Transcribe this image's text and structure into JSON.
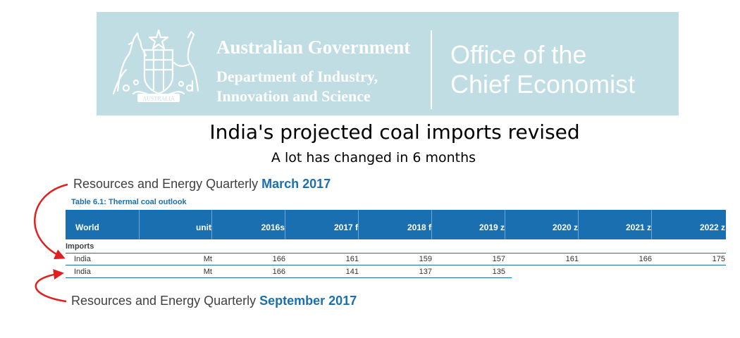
{
  "banner": {
    "government": "Australian Government",
    "department_line1": "Department of Industry,",
    "department_line2": "Innovation and Science",
    "office_line1": "Office of the",
    "office_line2": "Chief Economist",
    "crest_motto": "AUSTRALIA",
    "background_color": "#bfdde2"
  },
  "headline": {
    "title": "India's projected coal imports revised",
    "subtitle": "A lot has changed in 6 months"
  },
  "editions": {
    "march": {
      "prefix": "Resources and Energy Quarterly",
      "edition": "March 2017"
    },
    "september": {
      "prefix": "Resources and Energy Quarterly",
      "edition": "September 2017"
    }
  },
  "table": {
    "caption": "Table 6.1: Thermal coal outlook",
    "header_color": "#1a6fb0",
    "columns": [
      "World",
      "unit",
      "2016s",
      "2017 f",
      "2018 f",
      "2019 z",
      "2020 z",
      "2021 z",
      "2022 z"
    ],
    "section": "Imports",
    "rows": [
      {
        "name": "India",
        "unit": "Mt",
        "values": [
          "166",
          "161",
          "159",
          "157",
          "161",
          "166",
          "175"
        ]
      },
      {
        "name": "India",
        "unit": "Mt",
        "values": [
          "166",
          "141",
          "137",
          "135"
        ]
      }
    ]
  },
  "arrow_color": "#e02020"
}
